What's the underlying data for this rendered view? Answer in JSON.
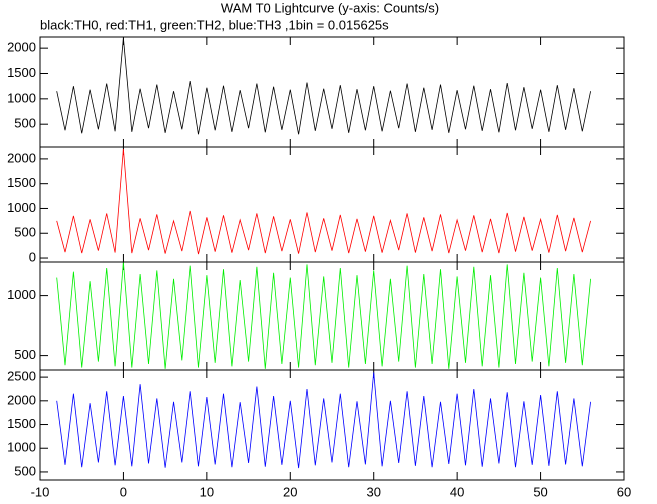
{
  "title": "WAM T0 Lightcurve (y-axis: Counts/s)",
  "subtitle": "black:TH0, red:TH1, green:TH2, blue:TH3 ,1bin = 0.015625s",
  "chart_data": [
    {
      "type": "line",
      "color": "#000000",
      "x": [
        -8,
        -7,
        -6,
        -5,
        -4,
        -3,
        -2,
        -1,
        0,
        1,
        2,
        3,
        4,
        5,
        6,
        7,
        8,
        9,
        10,
        11,
        12,
        13,
        14,
        15,
        16,
        17,
        18,
        19,
        20,
        21,
        22,
        23,
        24,
        25,
        26,
        27,
        28,
        29,
        30,
        31,
        32,
        33,
        34,
        35,
        36,
        37,
        38,
        39,
        40,
        41,
        42,
        43,
        44,
        45,
        46,
        47,
        48,
        49,
        50,
        51,
        52,
        53,
        54,
        55,
        56
      ],
      "values": [
        1150,
        380,
        1250,
        320,
        1180,
        400,
        1300,
        360,
        2200,
        350,
        1200,
        420,
        1280,
        330,
        1150,
        400,
        1350,
        300,
        1220,
        380,
        1260,
        350,
        1170,
        420,
        1300,
        340,
        1240,
        390,
        1180,
        300,
        1320,
        370,
        1200,
        410,
        1270,
        330,
        1190,
        380,
        1250,
        360,
        1160,
        420,
        1300,
        350,
        1220,
        390,
        1280,
        330,
        1170,
        400,
        1260,
        370,
        1190,
        340,
        1310,
        380,
        1230,
        410,
        1180,
        350,
        1270,
        390,
        1210,
        360,
        1150
      ],
      "xlim": [
        -10,
        60
      ],
      "xticks": [
        -10,
        0,
        10,
        20,
        30,
        40,
        50,
        60
      ],
      "ylim": [
        50,
        2220
      ],
      "yticks": [
        500,
        1000,
        1500,
        2000
      ]
    },
    {
      "type": "line",
      "color": "#ff0000",
      "x": [
        -8,
        -7,
        -6,
        -5,
        -4,
        -3,
        -2,
        -1,
        0,
        1,
        2,
        3,
        4,
        5,
        6,
        7,
        8,
        9,
        10,
        11,
        12,
        13,
        14,
        15,
        16,
        17,
        18,
        19,
        20,
        21,
        22,
        23,
        24,
        25,
        26,
        27,
        28,
        29,
        30,
        31,
        32,
        33,
        34,
        35,
        36,
        37,
        38,
        39,
        40,
        41,
        42,
        43,
        44,
        45,
        46,
        47,
        48,
        49,
        50,
        51,
        52,
        53,
        54,
        55,
        56
      ],
      "values": [
        750,
        120,
        850,
        100,
        780,
        150,
        900,
        110,
        2200,
        100,
        800,
        160,
        880,
        90,
        750,
        140,
        950,
        80,
        820,
        130,
        860,
        110,
        770,
        160,
        900,
        100,
        840,
        140,
        780,
        90,
        920,
        120,
        800,
        150,
        870,
        100,
        790,
        130,
        850,
        110,
        760,
        160,
        900,
        110,
        820,
        140,
        880,
        100,
        770,
        150,
        860,
        120,
        790,
        100,
        910,
        130,
        830,
        150,
        780,
        110,
        870,
        140,
        810,
        120,
        750
      ],
      "xlim": [
        -10,
        60
      ],
      "xticks": [
        -10,
        0,
        10,
        20,
        30,
        40,
        50,
        60
      ],
      "ylim": [
        -80,
        2240
      ],
      "yticks": [
        0,
        500,
        1000,
        1500,
        2000
      ]
    },
    {
      "type": "line",
      "color": "#00ee00",
      "x": [
        -8,
        -7,
        -6,
        -5,
        -4,
        -3,
        -2,
        -1,
        0,
        1,
        2,
        3,
        4,
        5,
        6,
        7,
        8,
        9,
        10,
        11,
        12,
        13,
        14,
        15,
        16,
        17,
        18,
        19,
        20,
        21,
        22,
        23,
        24,
        25,
        26,
        27,
        28,
        29,
        30,
        31,
        32,
        33,
        34,
        35,
        36,
        37,
        38,
        39,
        40,
        41,
        42,
        43,
        44,
        45,
        46,
        47,
        48,
        49,
        50,
        51,
        52,
        53,
        54,
        55,
        56
      ],
      "values": [
        1150,
        420,
        1200,
        400,
        1120,
        450,
        1230,
        410,
        1280,
        400,
        1180,
        430,
        1210,
        390,
        1140,
        460,
        1250,
        400,
        1170,
        440,
        1220,
        410,
        1130,
        450,
        1240,
        390,
        1190,
        430,
        1150,
        400,
        1260,
        420,
        1160,
        440,
        1230,
        400,
        1170,
        430,
        1210,
        410,
        1140,
        450,
        1250,
        400,
        1180,
        430,
        1220,
        390,
        1160,
        440,
        1240,
        410,
        1170,
        400,
        1260,
        430,
        1190,
        450,
        1150,
        410,
        1230,
        440,
        1180,
        420,
        1140
      ],
      "xlim": [
        -10,
        60
      ],
      "xticks": [
        -10,
        0,
        10,
        20,
        30,
        40,
        50,
        60
      ],
      "ylim": [
        380,
        1280
      ],
      "yticks": [
        500,
        1000
      ]
    },
    {
      "type": "line",
      "color": "#0000ff",
      "x": [
        -8,
        -7,
        -6,
        -5,
        -4,
        -3,
        -2,
        -1,
        0,
        1,
        2,
        3,
        4,
        5,
        6,
        7,
        8,
        9,
        10,
        11,
        12,
        13,
        14,
        15,
        16,
        17,
        18,
        19,
        20,
        21,
        22,
        23,
        24,
        25,
        26,
        27,
        28,
        29,
        30,
        31,
        32,
        33,
        34,
        35,
        36,
        37,
        38,
        39,
        40,
        41,
        42,
        43,
        44,
        45,
        46,
        47,
        48,
        49,
        50,
        51,
        52,
        53,
        54,
        55,
        56
      ],
      "values": [
        2000,
        650,
        2150,
        600,
        1950,
        700,
        2200,
        640,
        2100,
        620,
        2350,
        680,
        2050,
        590,
        1980,
        700,
        2200,
        620,
        2080,
        660,
        2150,
        600,
        1970,
        690,
        2300,
        610,
        2100,
        650,
        2000,
        580,
        2250,
        640,
        2050,
        700,
        2150,
        600,
        1990,
        660,
        2600,
        620,
        2000,
        690,
        2200,
        630,
        2100,
        600,
        1980,
        670,
        2150,
        640,
        2250,
        610,
        2050,
        680,
        2180,
        600,
        1990,
        650,
        2120,
        630,
        2200,
        660,
        2050,
        620,
        1980
      ],
      "xlim": [
        -10,
        60
      ],
      "xticks": [
        -10,
        0,
        10,
        20,
        30,
        40,
        50,
        60
      ],
      "ylim": [
        330,
        2650
      ],
      "yticks": [
        500,
        1000,
        1500,
        2000,
        2500
      ]
    }
  ]
}
